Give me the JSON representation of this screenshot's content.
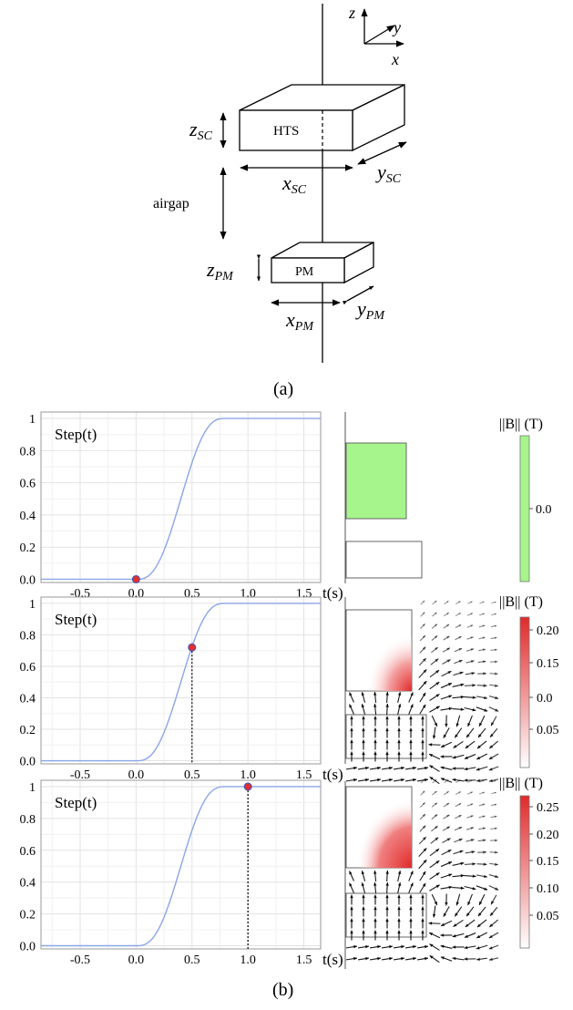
{
  "diagram_a": {
    "axes": {
      "z": "z",
      "y": "y",
      "x": "x"
    },
    "hts_label": "HTS",
    "pm_label": "PM",
    "airgap_label": "airgap",
    "dims": {
      "z_sc": {
        "main": "z",
        "sub": "SC"
      },
      "x_sc": {
        "main": "x",
        "sub": "SC"
      },
      "y_sc": {
        "main": "y",
        "sub": "SC"
      },
      "z_pm": {
        "main": "z",
        "sub": "PM"
      },
      "x_pm": {
        "main": "x",
        "sub": "PM"
      },
      "y_pm": {
        "main": "y",
        "sub": "PM"
      }
    },
    "caption": "(a)"
  },
  "caption_b": "(b)",
  "chart_data": [
    {
      "type": "line",
      "title": "Step(t)",
      "xlabel": "t(s)",
      "xticks": [
        "-0.5",
        "0.0",
        "0.5",
        "1.0",
        "1.5"
      ],
      "yticks": [
        "0.0",
        "0.2",
        "0.4",
        "0.6",
        "0.8",
        "1"
      ],
      "xlim": [
        -0.85,
        1.65
      ],
      "ylim": [
        -0.02,
        1.04
      ],
      "curve": "smooth step from 0 at t=0 to 1 at t=0.8",
      "series": [
        {
          "x": [
            -0.85,
            0.0,
            0.1,
            0.2,
            0.3,
            0.4,
            0.5,
            0.6,
            0.7,
            0.8,
            1.65
          ],
          "y": [
            0.0,
            0.0,
            0.03,
            0.1,
            0.3,
            0.5,
            0.7,
            0.9,
            0.97,
            1.0,
            1.0
          ]
        }
      ],
      "marker": {
        "x": 0.0,
        "y": 0.0
      },
      "color": "#8aa6e8",
      "marker_color": "#e03030"
    },
    {
      "type": "line",
      "title": "Step(t)",
      "xlabel": "t(s)",
      "xticks": [
        "-0.5",
        "0.0",
        "0.5",
        "1.0",
        "1.5"
      ],
      "yticks": [
        "0.0",
        "0.2",
        "0.4",
        "0.6",
        "0.8",
        "1"
      ],
      "xlim": [
        -0.85,
        1.65
      ],
      "ylim": [
        -0.02,
        1.04
      ],
      "series": [
        {
          "x": [
            -0.85,
            0.0,
            0.1,
            0.2,
            0.3,
            0.4,
            0.5,
            0.6,
            0.7,
            0.8,
            1.65
          ],
          "y": [
            0.0,
            0.0,
            0.03,
            0.1,
            0.3,
            0.5,
            0.7,
            0.9,
            0.97,
            1.0,
            1.0
          ]
        }
      ],
      "marker": {
        "x": 0.5,
        "y": 0.72
      },
      "color": "#8aa6e8",
      "marker_color": "#e03030"
    },
    {
      "type": "line",
      "title": "Step(t)",
      "xlabel": "t(s)",
      "xticks": [
        "-0.5",
        "0.0",
        "0.5",
        "1.0",
        "1.5"
      ],
      "yticks": [
        "0.0",
        "0.2",
        "0.4",
        "0.6",
        "0.8",
        "1"
      ],
      "xlim": [
        -0.85,
        1.65
      ],
      "ylim": [
        -0.02,
        1.04
      ],
      "series": [
        {
          "x": [
            -0.85,
            0.0,
            0.1,
            0.2,
            0.3,
            0.4,
            0.5,
            0.6,
            0.7,
            0.8,
            1.65
          ],
          "y": [
            0.0,
            0.0,
            0.03,
            0.1,
            0.3,
            0.5,
            0.7,
            0.9,
            0.97,
            1.0,
            1.0
          ]
        }
      ],
      "marker": {
        "x": 1.0,
        "y": 1.0
      },
      "color": "#8aa6e8",
      "marker_color": "#e03030"
    }
  ],
  "colorbars": [
    {
      "label": "||B|| (T)",
      "ticks": [
        "0.0"
      ],
      "color": "#a6f58c"
    },
    {
      "label": "||B|| (T)",
      "ticks": [
        "0.20",
        "0.15",
        "0.0",
        "0.05"
      ],
      "color": "#e03030"
    },
    {
      "label": "||B|| (T)",
      "ticks": [
        "0.25",
        "0.20",
        "0.15",
        "0.10",
        "0.05"
      ],
      "color": "#e03030"
    }
  ]
}
